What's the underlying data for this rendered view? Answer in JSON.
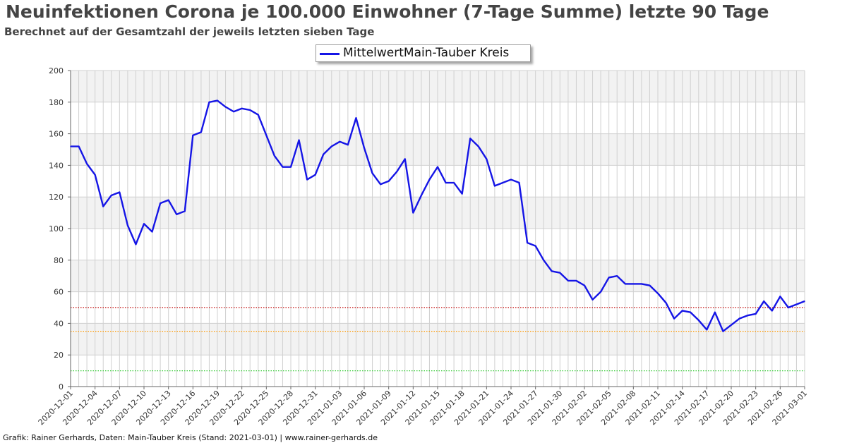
{
  "chart_data": {
    "type": "line",
    "title": "Neuinfektionen Corona je 100.000 Einwohner (7-Tage Summe) letzte 90 Tage",
    "subtitle": "Berechnet auf der Gesamtzahl der jeweils letzten sieben Tage",
    "legend": {
      "position": "top-center",
      "entry": "MittelwertMain-Tauber Kreis"
    },
    "ylim": [
      0,
      200
    ],
    "yticks": [
      0,
      20,
      40,
      60,
      80,
      100,
      120,
      140,
      160,
      180,
      200
    ],
    "grid": true,
    "colors": {
      "series": "#1515e6",
      "grid": "#d0d0d0",
      "band": "#f2f2f2",
      "axis": "#666666"
    },
    "xtick_labels": [
      "2020-12-01",
      "2020-12-04",
      "2020-12-07",
      "2020-12-10",
      "2020-12-13",
      "2020-12-16",
      "2020-12-19",
      "2020-12-22",
      "2020-12-25",
      "2020-12-28",
      "2020-12-31",
      "2021-01-03",
      "2021-01-06",
      "2021-01-09",
      "2021-01-12",
      "2021-01-15",
      "2021-01-18",
      "2021-01-21",
      "2021-01-24",
      "2021-01-27",
      "2021-01-30",
      "2021-02-02",
      "2021-02-05",
      "2021-02-08",
      "2021-02-11",
      "2021-02-14",
      "2021-02-17",
      "2021-02-20",
      "2021-02-23",
      "2021-02-26",
      "2021-03-01"
    ],
    "x": [
      "2020-12-01",
      "2020-12-02",
      "2020-12-03",
      "2020-12-04",
      "2020-12-05",
      "2020-12-06",
      "2020-12-07",
      "2020-12-08",
      "2020-12-09",
      "2020-12-10",
      "2020-12-11",
      "2020-12-12",
      "2020-12-13",
      "2020-12-14",
      "2020-12-15",
      "2020-12-16",
      "2020-12-17",
      "2020-12-18",
      "2020-12-19",
      "2020-12-20",
      "2020-12-21",
      "2020-12-22",
      "2020-12-23",
      "2020-12-24",
      "2020-12-25",
      "2020-12-26",
      "2020-12-27",
      "2020-12-28",
      "2020-12-29",
      "2020-12-30",
      "2020-12-31",
      "2021-01-01",
      "2021-01-02",
      "2021-01-03",
      "2021-01-04",
      "2021-01-05",
      "2021-01-06",
      "2021-01-07",
      "2021-01-08",
      "2021-01-09",
      "2021-01-10",
      "2021-01-11",
      "2021-01-12",
      "2021-01-13",
      "2021-01-14",
      "2021-01-15",
      "2021-01-16",
      "2021-01-17",
      "2021-01-18",
      "2021-01-19",
      "2021-01-20",
      "2021-01-21",
      "2021-01-22",
      "2021-01-23",
      "2021-01-24",
      "2021-01-25",
      "2021-01-26",
      "2021-01-27",
      "2021-01-28",
      "2021-01-29",
      "2021-01-30",
      "2021-01-31",
      "2021-02-01",
      "2021-02-02",
      "2021-02-03",
      "2021-02-04",
      "2021-02-05",
      "2021-02-06",
      "2021-02-07",
      "2021-02-08",
      "2021-02-09",
      "2021-02-10",
      "2021-02-11",
      "2021-02-12",
      "2021-02-13",
      "2021-02-14",
      "2021-02-15",
      "2021-02-16",
      "2021-02-17",
      "2021-02-18",
      "2021-02-19",
      "2021-02-20",
      "2021-02-21",
      "2021-02-22",
      "2021-02-23",
      "2021-02-24",
      "2021-02-25",
      "2021-02-26",
      "2021-02-27",
      "2021-02-28",
      "2021-03-01"
    ],
    "series": [
      {
        "name": "MittelwertMain-Tauber Kreis",
        "values": [
          152,
          152,
          141,
          134,
          114,
          121,
          123,
          102,
          90,
          103,
          98,
          116,
          118,
          109,
          111,
          159,
          161,
          180,
          181,
          177,
          174,
          176,
          175,
          172,
          159,
          146,
          139,
          139,
          156,
          131,
          134,
          147,
          152,
          155,
          153,
          170,
          151,
          135,
          128,
          130,
          136,
          144,
          110,
          121,
          131,
          139,
          129,
          129,
          122,
          157,
          152,
          144,
          127,
          129,
          131,
          129,
          91,
          89,
          80,
          73,
          72,
          67,
          67,
          64,
          55,
          60,
          69,
          70,
          65,
          65,
          65,
          64,
          59,
          53,
          43,
          48,
          47,
          42,
          36,
          47,
          35,
          39,
          43,
          45,
          46,
          54,
          48,
          57,
          50,
          52,
          54
        ]
      }
    ],
    "reference_lines": [
      {
        "value": 50,
        "color": "#c00000"
      },
      {
        "value": 35,
        "color": "#ff9900"
      },
      {
        "value": 10,
        "color": "#33cc33"
      }
    ]
  },
  "footer": "Grafik: Rainer Gerhards, Daten: Main-Tauber Kreis (Stand: 2021-03-01) | www.rainer-gerhards.de"
}
